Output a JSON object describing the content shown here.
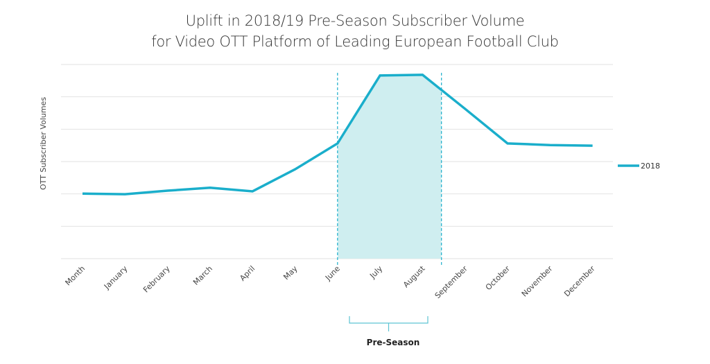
{
  "chart_data": {
    "type": "line",
    "title": "Uplift in 2018/19 Pre-Season Subscriber Volume",
    "subtitle": "for Video OTT Platform of Leading European Football Club",
    "xlabel": "",
    "ylabel": "OTT Subscriber Volumes",
    "categories": [
      "Month",
      "January",
      "February",
      "March",
      "April",
      "May",
      "June",
      "July",
      "August",
      "September",
      "October",
      "November",
      "December"
    ],
    "series": [
      {
        "name": "2018",
        "color": "#1aaecb",
        "values": [
          2.01,
          1.99,
          2.1,
          2.19,
          2.08,
          2.76,
          3.56,
          5.66,
          5.68,
          4.63,
          3.56,
          3.51,
          3.49
        ]
      }
    ],
    "ylim": [
      0,
      6
    ],
    "y_gridlines": 7,
    "y_tick_labels_shown": false,
    "grid": true,
    "legend": {
      "placement": "right",
      "entries": [
        "2018"
      ]
    },
    "highlight": {
      "label": "Pre-Season",
      "from_category": "June",
      "to_category": "September",
      "fill": "#cfeef0",
      "boundary_color": "#1aaecb"
    }
  }
}
